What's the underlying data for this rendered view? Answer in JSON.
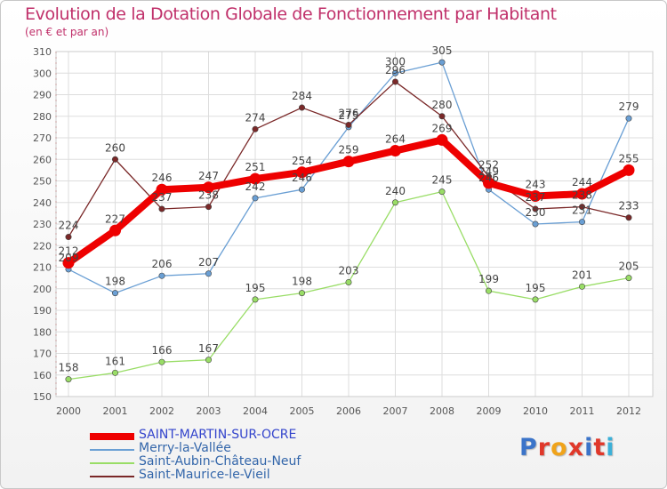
{
  "title": "Evolution de la Dotation Globale de Fonctionnement par Habitant",
  "subtitle": "(en € et par an)",
  "brand": {
    "text": "Proxiti",
    "colors": [
      "#3b74c9",
      "#e0382a",
      "#f0a31a",
      "#e0382a",
      "#3b74c9",
      "#e0382a",
      "#3bb0d8"
    ]
  },
  "chart_data": {
    "type": "line",
    "title": "Evolution de la Dotation Globale de Fonctionnement par Habitant",
    "subtitle": "(en € et par an)",
    "xlabel": "",
    "ylabel": "",
    "categories": [
      "2000",
      "2001",
      "2002",
      "2003",
      "2004",
      "2005",
      "2006",
      "2007",
      "2008",
      "2009",
      "2010",
      "2011",
      "2012"
    ],
    "ylim": [
      150,
      310
    ],
    "yticks": [
      150,
      160,
      170,
      180,
      190,
      200,
      210,
      220,
      230,
      240,
      250,
      260,
      270,
      280,
      290,
      300,
      310
    ],
    "grid": true,
    "legend_position": "bottom-left",
    "series": [
      {
        "name": "SAINT-MARTIN-SUR-OCRE",
        "color": "#ee0000",
        "emphasis": true,
        "values": [
          212,
          227,
          246,
          247,
          251,
          254,
          259,
          264,
          269,
          249,
          243,
          244,
          255
        ]
      },
      {
        "name": "Merry-la-Vallée",
        "color": "#6a9fd4",
        "emphasis": false,
        "values": [
          209,
          198,
          206,
          207,
          242,
          246,
          275,
          300,
          305,
          246,
          230,
          231,
          279
        ]
      },
      {
        "name": "Saint-Aubin-Château-Neuf",
        "color": "#99dd66",
        "emphasis": false,
        "values": [
          158,
          161,
          166,
          167,
          195,
          198,
          203,
          240,
          245,
          199,
          195,
          201,
          205
        ]
      },
      {
        "name": "Saint-Maurice-le-Vieil",
        "color": "#7a2828",
        "emphasis": false,
        "values": [
          224,
          260,
          237,
          238,
          274,
          284,
          276,
          296,
          280,
          252,
          237,
          238,
          233
        ]
      }
    ]
  }
}
